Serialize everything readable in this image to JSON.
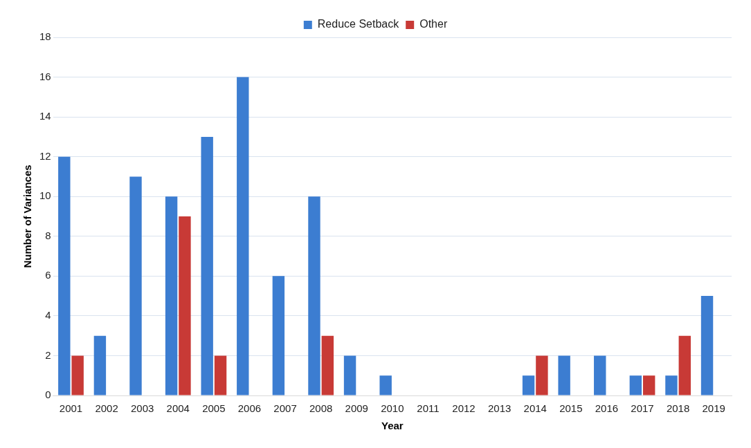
{
  "chart_data": {
    "type": "bar",
    "xlabel": "Year",
    "ylabel": "Number of Variances",
    "categories": [
      "2001",
      "2002",
      "2003",
      "2004",
      "2005",
      "2006",
      "2007",
      "2008",
      "2009",
      "2010",
      "2011",
      "2012",
      "2013",
      "2014",
      "2015",
      "2016",
      "2017",
      "2018",
      "2019"
    ],
    "series": [
      {
        "name": "Reduce Setback",
        "color": "#3c7dd1",
        "values": [
          12,
          3,
          11,
          10,
          13,
          16,
          6,
          10,
          2,
          1,
          0,
          0,
          0,
          1,
          2,
          2,
          1,
          1,
          5
        ]
      },
      {
        "name": "Other",
        "color": "#c83a36",
        "values": [
          2,
          0,
          0,
          9,
          2,
          0,
          0,
          3,
          0,
          0,
          0,
          0,
          0,
          2,
          0,
          0,
          1,
          3,
          0
        ]
      }
    ],
    "ylim": [
      0,
      18
    ],
    "yticks": [
      0,
      2,
      4,
      6,
      8,
      10,
      12,
      14,
      16,
      18
    ],
    "grid": "y",
    "legend": "top"
  }
}
